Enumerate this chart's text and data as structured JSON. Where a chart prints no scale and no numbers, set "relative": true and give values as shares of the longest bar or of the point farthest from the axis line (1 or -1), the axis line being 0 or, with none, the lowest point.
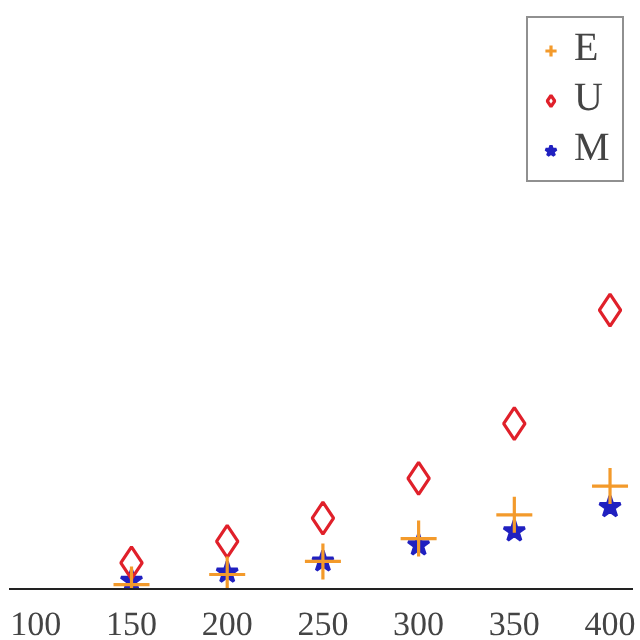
{
  "chart_data": {
    "type": "scatter",
    "relative": true,
    "x": [
      150,
      200,
      250,
      300,
      350,
      400
    ],
    "xlim": [
      86,
      412
    ],
    "xticks": [
      100,
      150,
      200,
      250,
      300,
      350,
      400
    ],
    "grid": false,
    "legend": "top right",
    "series": [
      {
        "name": "E",
        "color": "#f39a2b",
        "marker": "cross",
        "values": [
          0.016,
          0.052,
          0.099,
          0.181,
          0.266,
          0.369
        ]
      },
      {
        "name": "U",
        "color": "#e0202a",
        "marker": "diamond",
        "values": [
          0.094,
          0.171,
          0.254,
          0.397,
          0.593,
          1
        ]
      },
      {
        "name": "M",
        "color": "#2020c0",
        "marker": "star",
        "values": [
          0.03,
          0.059,
          0.099,
          0.157,
          0.207,
          0.294
        ]
      }
    ]
  }
}
